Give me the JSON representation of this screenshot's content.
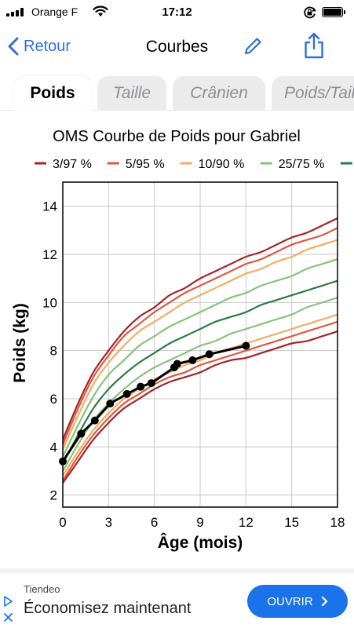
{
  "status_bar": {
    "carrier": "Orange F",
    "time": "17:12",
    "icons": [
      "signal-icon",
      "wifi-icon",
      "orientation-lock-icon",
      "battery-icon"
    ]
  },
  "nav": {
    "back_label": "Retour",
    "title": "Courbes",
    "edit_icon": "pencil-icon",
    "share_icon": "share-icon",
    "accent_color": "#2f6fde"
  },
  "tabs": [
    {
      "label": "Poids",
      "active": true
    },
    {
      "label": "Taille",
      "active": false
    },
    {
      "label": "Crânien",
      "active": false
    },
    {
      "label": "Poids/Taille",
      "active": false
    }
  ],
  "chart_data": {
    "type": "line",
    "title": "OMS Courbe de Poids pour Gabriel",
    "xlabel": "Âge (mois)",
    "ylabel": "Poids (kg)",
    "xlim": [
      0,
      18
    ],
    "ylim": [
      1.5,
      15
    ],
    "x_ticks": [
      0,
      3,
      6,
      9,
      12,
      15,
      18
    ],
    "y_ticks": [
      2,
      4,
      6,
      8,
      10,
      12,
      14
    ],
    "grid": true,
    "legend_position": "top",
    "legend": [
      {
        "label": "3/97 %",
        "color": "#a4242b"
      },
      {
        "label": "5/95 %",
        "color": "#de5840"
      },
      {
        "label": "10/90 %",
        "color": "#f3ad63"
      },
      {
        "label": "25/75 %",
        "color": "#86c47a"
      },
      {
        "label": "",
        "color": "#2f7a43"
      }
    ],
    "x": [
      0,
      1,
      2,
      3,
      4,
      5,
      6,
      7,
      8,
      9,
      10,
      11,
      12,
      13,
      14,
      15,
      16,
      17,
      18
    ],
    "series": [
      {
        "name": "3/97 %",
        "color": "#a4242b",
        "values": [
          2.5,
          3.4,
          4.3,
          5.0,
          5.6,
          6.0,
          6.4,
          6.7,
          6.9,
          7.1,
          7.4,
          7.6,
          7.7,
          7.9,
          8.1,
          8.3,
          8.4,
          8.6,
          8.8
        ]
      },
      {
        "name": "5/95 %",
        "color": "#de5840",
        "values": [
          2.6,
          3.6,
          4.5,
          5.2,
          5.8,
          6.2,
          6.6,
          6.9,
          7.1,
          7.4,
          7.6,
          7.8,
          8.0,
          8.2,
          8.4,
          8.6,
          8.8,
          9.0,
          9.2
        ]
      },
      {
        "name": "10/90 %",
        "color": "#f3ad63",
        "values": [
          2.8,
          3.8,
          4.7,
          5.4,
          6.0,
          6.4,
          6.8,
          7.1,
          7.4,
          7.6,
          7.9,
          8.1,
          8.3,
          8.5,
          8.7,
          8.9,
          9.1,
          9.3,
          9.5
        ]
      },
      {
        "name": "25/75 %",
        "color": "#86c47a",
        "values": [
          3.0,
          4.1,
          5.1,
          5.8,
          6.4,
          6.9,
          7.3,
          7.6,
          7.9,
          8.2,
          8.4,
          8.7,
          8.9,
          9.1,
          9.3,
          9.5,
          9.8,
          10.0,
          10.2
        ]
      },
      {
        "name": "",
        "color": "#2f7a43",
        "values": [
          3.3,
          4.5,
          5.6,
          6.4,
          7.0,
          7.5,
          7.9,
          8.3,
          8.6,
          8.9,
          9.2,
          9.4,
          9.6,
          9.9,
          10.1,
          10.3,
          10.5,
          10.7,
          10.9
        ]
      },
      {
        "name": "",
        "color": "#86c47a",
        "values": [
          3.6,
          4.9,
          6.1,
          7.0,
          7.6,
          8.2,
          8.6,
          9.0,
          9.3,
          9.6,
          9.9,
          10.2,
          10.4,
          10.7,
          10.9,
          11.1,
          11.4,
          11.6,
          11.8
        ]
      },
      {
        "name": "",
        "color": "#f3ad63",
        "values": [
          3.9,
          5.3,
          6.6,
          7.5,
          8.2,
          8.8,
          9.2,
          9.6,
          10.0,
          10.3,
          10.6,
          10.9,
          11.2,
          11.4,
          11.7,
          11.9,
          12.2,
          12.4,
          12.6
        ]
      },
      {
        "name": "",
        "color": "#de5840",
        "values": [
          4.1,
          5.6,
          6.9,
          7.8,
          8.6,
          9.1,
          9.6,
          10.0,
          10.4,
          10.7,
          11.0,
          11.3,
          11.6,
          11.8,
          12.1,
          12.4,
          12.6,
          12.8,
          13.1
        ]
      },
      {
        "name": "",
        "color": "#a4242b",
        "values": [
          4.3,
          5.8,
          7.1,
          8.0,
          8.8,
          9.4,
          9.8,
          10.3,
          10.6,
          11.0,
          11.3,
          11.6,
          11.9,
          12.1,
          12.4,
          12.7,
          12.9,
          13.2,
          13.5
        ]
      }
    ],
    "measurements": {
      "name": "Gabriel",
      "color": "#000000",
      "x": [
        0,
        1.2,
        2.1,
        3.1,
        4.2,
        5.1,
        5.8,
        7.3,
        7.5,
        8.5,
        9.6,
        12.0
      ],
      "y": [
        3.4,
        4.55,
        5.1,
        5.8,
        6.2,
        6.5,
        6.65,
        7.3,
        7.45,
        7.6,
        7.85,
        8.2
      ]
    }
  },
  "ad": {
    "source": "Tiendeo",
    "headline": "Économisez maintenant",
    "cta": "OUVRIR",
    "cta_color": "#1a73e8"
  }
}
